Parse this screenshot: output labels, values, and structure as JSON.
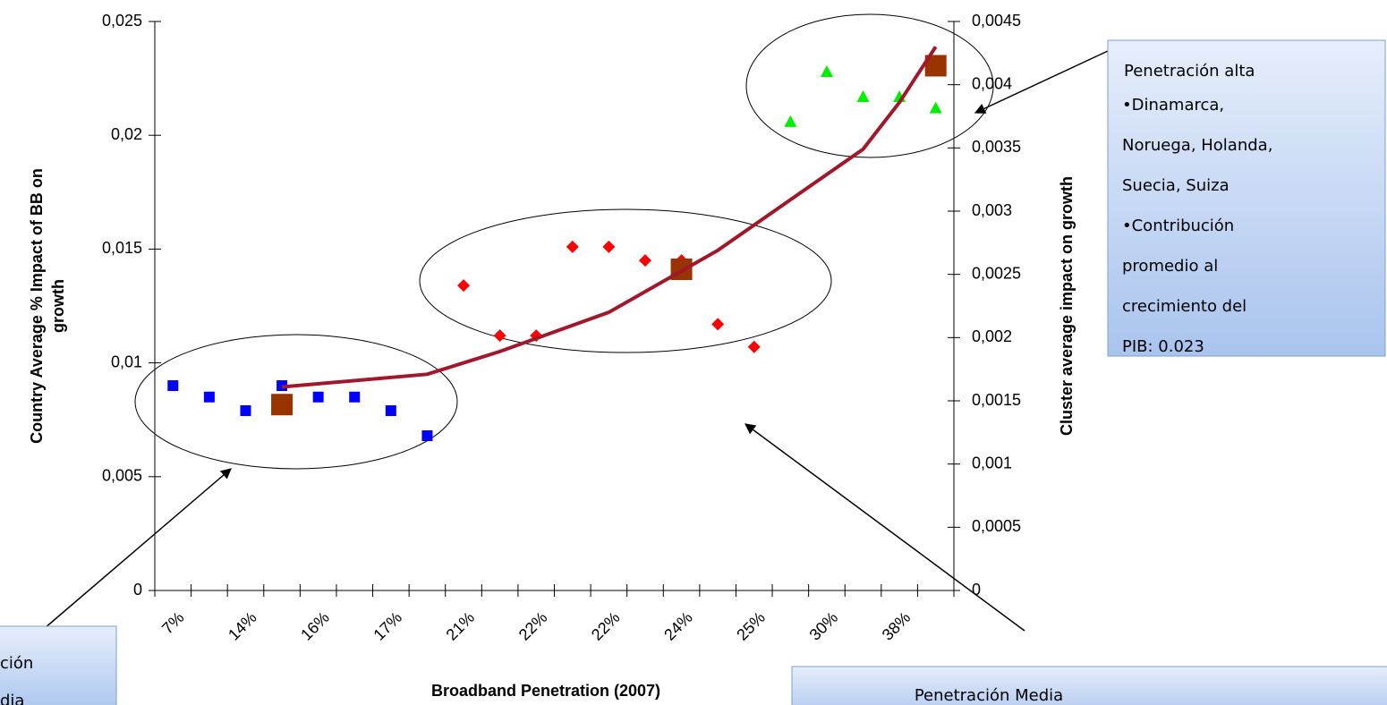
{
  "chart_data": {
    "type": "scatter",
    "x_label": "Broadband Penetration (2007)",
    "y_label": [
      "Country Average % Impact of BB on",
      "growth"
    ],
    "y2_label": "Cluster average impact on growth",
    "categories": [
      "7%",
      null,
      "14%",
      null,
      "16%",
      null,
      "17%",
      null,
      "21%",
      null,
      "22%",
      null,
      "22%",
      null,
      "24%",
      null,
      "25%",
      null,
      "30%",
      null,
      "38%",
      null
    ],
    "ylim": [
      0,
      0.025
    ],
    "yticks": [
      0,
      {
        "value": 0.005,
        "label": "0,005"
      },
      {
        "value": 0.01,
        "label": "0,01"
      },
      {
        "value": 0.015,
        "label": "0,015"
      },
      {
        "value": 0.02,
        "label": "0,02"
      },
      {
        "value": 0.025,
        "label": "0,025"
      }
    ],
    "y2lim": [
      0,
      0.0045
    ],
    "y2ticks": [
      0,
      {
        "value": 0.0005,
        "label": "0,0005"
      },
      {
        "value": 0.001,
        "label": "0,001"
      },
      {
        "value": 0.0015,
        "label": "0,0015"
      },
      {
        "value": 0.002,
        "label": "0,002"
      },
      {
        "value": 0.0025,
        "label": "0,0025"
      },
      {
        "value": 0.003,
        "label": "0,003"
      },
      {
        "value": 0.0035,
        "label": "0,0035"
      },
      {
        "value": 0.004,
        "label": "0,004"
      },
      {
        "value": 0.0045,
        "label": "0,0045"
      }
    ],
    "series": [
      {
        "type": "scatter",
        "marker": "square",
        "color": "#0000ff",
        "values": [
          0.009,
          0.0085,
          0.0079,
          0.009,
          0.0085,
          0.0085,
          0.0079,
          0.0068,
          null,
          null,
          null,
          null,
          null,
          null,
          null,
          null,
          null,
          null,
          null,
          null,
          null,
          null
        ]
      },
      {
        "type": "scatter",
        "marker": "diamond",
        "color": "#ff0000",
        "values": [
          null,
          null,
          null,
          null,
          null,
          null,
          null,
          null,
          0.0134,
          0.0112,
          0.0112,
          0.0151,
          0.0151,
          0.0145,
          0.0145,
          0.0117,
          0.0107,
          null,
          null,
          null,
          null,
          null
        ]
      },
      {
        "type": "scatter",
        "marker": "triangle",
        "color": "#00ee00",
        "values": [
          null,
          null,
          null,
          null,
          null,
          null,
          null,
          null,
          null,
          null,
          null,
          null,
          null,
          null,
          null,
          null,
          null,
          0.0206,
          0.0228,
          0.0217,
          0.0217,
          0.0212
        ]
      },
      {
        "type": "scatter",
        "marker": "bigsquare",
        "color": "#993300",
        "axis": "y2",
        "values": [
          null,
          null,
          null,
          0.00147,
          null,
          null,
          null,
          null,
          null,
          null,
          null,
          null,
          null,
          null,
          0.00254,
          null,
          null,
          null,
          null,
          null,
          null,
          0.00415
        ]
      },
      {
        "type": "line",
        "color": "#a0182a",
        "axis": "y2",
        "values": [
          null,
          null,
          null,
          0.00161,
          null,
          null,
          null,
          0.00171,
          null,
          0.00189,
          null,
          null,
          0.0022,
          null,
          null,
          0.00269,
          null,
          0.00309,
          null,
          0.00349,
          0.00386,
          0.0043
        ]
      }
    ]
  },
  "annotations": {
    "high": {
      "title": "Penetración alta",
      "lines": [
        "•Dinamarca,",
        "Noruega, Holanda,",
        "Suecia, Suiza",
        "•Contribución",
        "promedio al",
        "crecimiento del",
        "PIB: 0.023"
      ]
    },
    "medium": {
      "title": "Penetración Media"
    },
    "low": {
      "title": "ción",
      "lines": [
        "dia"
      ]
    }
  }
}
